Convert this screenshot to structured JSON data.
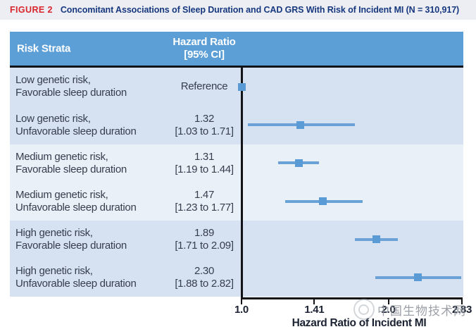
{
  "figure_header": {
    "tag": "FIGURE 2",
    "title": "Concomitant Associations of Sleep Duration and CAD GRS With Risk of Incident MI (N = 310,917)"
  },
  "table_header": {
    "col1": "Risk Strata",
    "col2_line1": "Hazard Ratio",
    "col2_line2": "[95% CI]"
  },
  "chart_data": {
    "type": "forest",
    "scale": "log2",
    "xlim": [
      1.0,
      2.83
    ],
    "xlabel": "Hazard Ratio of Incident MI",
    "x_ticks": [
      {
        "value": 1.0,
        "label": "1.0"
      },
      {
        "value": 1.41,
        "label": "1.41"
      },
      {
        "value": 2.0,
        "label": "2.0"
      },
      {
        "value": 2.83,
        "label": "2.83"
      }
    ],
    "rows": [
      {
        "label_line1": "Low genetic risk,",
        "label_line2": "Favorable sleep duration",
        "value_line1": "Reference",
        "value_line2": "",
        "hr": 1.0,
        "ci_low": null,
        "ci_high": null,
        "is_reference": true
      },
      {
        "label_line1": "Low genetic risk,",
        "label_line2": "Unfavorable sleep duration",
        "value_line1": "1.32",
        "value_line2": "[1.03 to 1.71]",
        "hr": 1.32,
        "ci_low": 1.03,
        "ci_high": 1.71,
        "is_reference": false
      },
      {
        "label_line1": "Medium genetic risk,",
        "label_line2": "Favorable sleep duration",
        "value_line1": "1.31",
        "value_line2": "[1.19 to 1.44]",
        "hr": 1.31,
        "ci_low": 1.19,
        "ci_high": 1.44,
        "is_reference": false
      },
      {
        "label_line1": "Medium genetic risk,",
        "label_line2": "Unfavorable sleep duration",
        "value_line1": "1.47",
        "value_line2": "[1.23 to 1.77]",
        "hr": 1.47,
        "ci_low": 1.23,
        "ci_high": 1.77,
        "is_reference": false
      },
      {
        "label_line1": "High genetic risk,",
        "label_line2": "Favorable sleep duration",
        "value_line1": "1.89",
        "value_line2": "[1.71 to 2.09]",
        "hr": 1.89,
        "ci_low": 1.71,
        "ci_high": 2.09,
        "is_reference": false
      },
      {
        "label_line1": "High genetic risk,",
        "label_line2": "Unfavorable sleep duration",
        "value_line1": "2.30",
        "value_line2": "[1.88 to 2.82]",
        "hr": 2.3,
        "ci_low": 1.88,
        "ci_high": 2.82,
        "is_reference": false
      }
    ],
    "legend_position": "none",
    "grid": false,
    "marker_color": "#5B9BD5",
    "ci_color": "#6AA2D8",
    "axis_color": "#121417"
  },
  "watermark": {
    "text": "中国生物技术网"
  },
  "colors": {
    "header_blue": "#5C9FD7",
    "band_dark": "#D6E1F1",
    "band_light": "#EAF0F8",
    "title_bar_bg": "#ECEEF4",
    "figure_tag_red": "#D8262C",
    "figure_title_navy": "#17387E",
    "body_text": "#363E4E"
  }
}
